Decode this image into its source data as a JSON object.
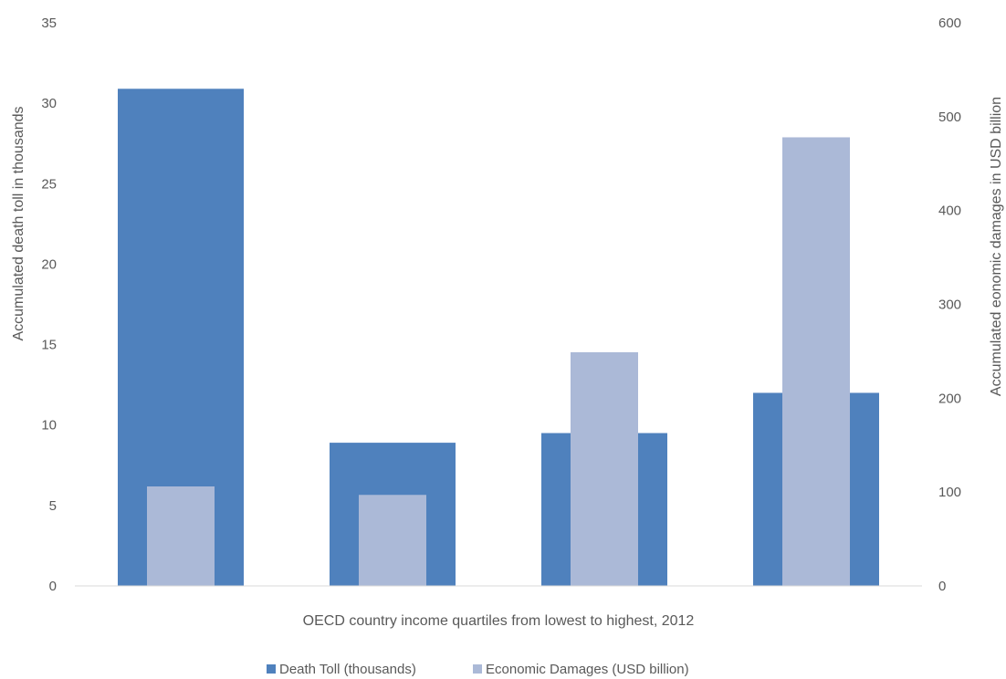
{
  "chart_data": {
    "type": "bar",
    "title": "",
    "xlabel": "OECD country  income quartiles from lowest to highest, 2012",
    "ylabel": "Accumulated death toll in thousands",
    "y2label": "Accumulated eonomic damages in USD billion",
    "categories": [
      "",
      "",
      "",
      ""
    ],
    "ylim": [
      0,
      35
    ],
    "y2lim": [
      0,
      600
    ],
    "yticks": [
      "0",
      "5",
      "10",
      "15",
      "20",
      "25",
      "30",
      "35"
    ],
    "y2ticks": [
      "0",
      "100",
      "200",
      "300",
      "400",
      "500",
      "600"
    ],
    "series": [
      {
        "name": "Death Toll (thousands)",
        "axis": "left",
        "values": [
          30.9,
          8.9,
          9.5,
          12.0
        ],
        "color": "#4f81bd"
      },
      {
        "name": "Economic Damages (USD billion)",
        "axis": "right",
        "values": [
          106,
          97,
          249,
          478
        ],
        "color": "#abb9d7"
      }
    ],
    "legend_position": "bottom",
    "grid": false
  }
}
